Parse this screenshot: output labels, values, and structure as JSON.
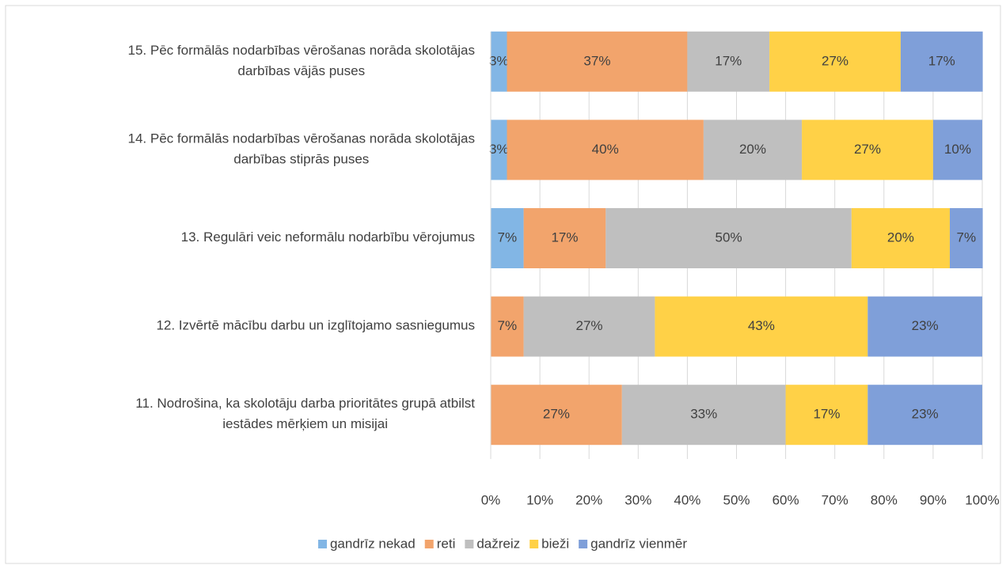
{
  "chart_data": {
    "type": "stacked-barh",
    "categories": [
      [
        "15. Pēc formālās nodarbības vērošanas norāda skolotājas",
        "darbības vājās puses"
      ],
      [
        "14. Pēc formālās nodarbības vērošanas norāda skolotājas",
        "darbības stiprās puses"
      ],
      [
        "13. Regulāri veic neformālu nodarbību vērojumus"
      ],
      [
        "12. Izvērtē mācību darbu un izglītojamo sasniegumus"
      ],
      [
        "11. Nodrošina, ka skolotāju darba prioritātes grupā atbilst",
        "iestādes mērķiem un misijai"
      ]
    ],
    "series": [
      {
        "name": "gandrīz nekad",
        "color": "#82b6e5",
        "values": [
          3.3,
          3.3,
          6.7,
          0,
          0
        ],
        "value_labels": [
          "3%",
          "3%",
          "7%",
          null,
          null
        ]
      },
      {
        "name": "reti",
        "color": "#f2a46c",
        "values": [
          36.7,
          40,
          16.7,
          6.7,
          26.7
        ],
        "value_labels": [
          "37%",
          "40%",
          "17%",
          "7%",
          "27%"
        ]
      },
      {
        "name": "dažreiz",
        "color": "#bfbfbf",
        "values": [
          16.7,
          20,
          50,
          26.7,
          33.3
        ],
        "value_labels": [
          "17%",
          "20%",
          "50%",
          "27%",
          "33%"
        ]
      },
      {
        "name": "bieži",
        "color": "#ffd147",
        "values": [
          26.7,
          26.7,
          20,
          43.3,
          16.7
        ],
        "value_labels": [
          "27%",
          "27%",
          "20%",
          "43%",
          "17%"
        ]
      },
      {
        "name": "gandrīz vienmēr",
        "color": "#7f9fd9",
        "values": [
          16.7,
          10,
          6.7,
          23.3,
          23.3
        ],
        "value_labels": [
          "17%",
          "10%",
          "7%",
          "23%",
          "23%"
        ]
      }
    ],
    "xlim": [
      0,
      100
    ],
    "xticks": [
      {
        "value": 0,
        "label": "0%"
      },
      {
        "value": 10,
        "label": "10%"
      },
      {
        "value": 20,
        "label": "20%"
      },
      {
        "value": 30,
        "label": "30%"
      },
      {
        "value": 40,
        "label": "40%"
      },
      {
        "value": 50,
        "label": "50%"
      },
      {
        "value": 60,
        "label": "60%"
      },
      {
        "value": 70,
        "label": "70%"
      },
      {
        "value": 80,
        "label": "80%"
      },
      {
        "value": 90,
        "label": "90%"
      },
      {
        "value": 100,
        "label": "100%"
      }
    ],
    "grid": true,
    "legend": "bottom"
  }
}
